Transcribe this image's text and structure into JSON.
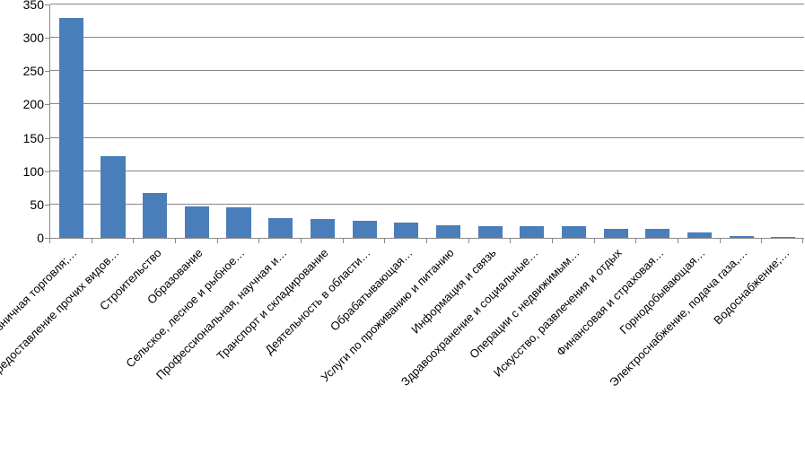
{
  "chart": {
    "type": "bar",
    "categories": [
      "Оптовая и розничная торговля;…",
      "Предоставление прочих видов…",
      "Строительство",
      "Образование",
      "Сельское, лесное и рыбное…",
      "Профессиональная, научная и…",
      "Транспорт и складирование",
      "Деятельность в области…",
      "Обрабатывающая…",
      "Услуги по проживанию и питанию",
      "Информация и связь",
      "Здравоохранение и социальные…",
      "Операции с недвижимым…",
      "Искусство, развлечения и отдых",
      "Финансовая и страховая…",
      "Горнодобывающая…",
      "Электроснабжение, подача газа,…",
      "Водоснабжение;…"
    ],
    "values": [
      330,
      122,
      68,
      47,
      46,
      30,
      28,
      26,
      23,
      19,
      18,
      17,
      17,
      14,
      13,
      8,
      3,
      1
    ],
    "bar_color": "#4a7ebb",
    "ylim": [
      0,
      350
    ],
    "ytick_step": 50,
    "yticks": [
      0,
      50,
      100,
      150,
      200,
      250,
      300,
      350
    ],
    "grid_color": "#888888",
    "background_color": "#ffffff",
    "label_fontsize": 13,
    "tick_fontsize": 14,
    "x_label_rotation": -45
  }
}
